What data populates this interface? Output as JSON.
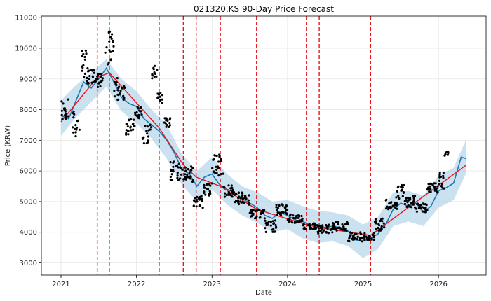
{
  "chart_data": {
    "type": "line",
    "title": "021320.KS 90-Day Price Forecast",
    "xlabel": "Date",
    "ylabel": "Price (KRW)",
    "xlim": [
      2020.74,
      2026.63
    ],
    "ylim": [
      2600,
      11050
    ],
    "x_ticks": [
      2021,
      2022,
      2023,
      2024,
      2025,
      2026
    ],
    "x_tick_labels": [
      "2021",
      "2022",
      "2023",
      "2024",
      "2025",
      "2026"
    ],
    "y_ticks": [
      3000,
      4000,
      5000,
      6000,
      7000,
      8000,
      9000,
      10000,
      11000
    ],
    "y_tick_labels": [
      "3000",
      "4000",
      "5000",
      "6000",
      "7000",
      "8000",
      "9000",
      "10000",
      "11000"
    ],
    "grid": true,
    "colors": {
      "forecast": "#1f77b4",
      "band": "#a6cde6",
      "trend": "#e8141c",
      "changepoint": "#e8141c",
      "observed": "#000000"
    },
    "changepoints": [
      2021.48,
      2021.64,
      2022.3,
      2022.62,
      2022.79,
      2023.11,
      2023.59,
      2024.25,
      2024.42,
      2025.1
    ],
    "trend": {
      "x": [
        2021.0,
        2021.48,
        2021.64,
        2022.3,
        2022.62,
        2022.79,
        2023.11,
        2023.59,
        2024.25,
        2024.42,
        2025.1,
        2026.37
      ],
      "y": [
        7600,
        9050,
        9200,
        7400,
        6200,
        5800,
        5500,
        4750,
        4250,
        4150,
        3900,
        6200
      ]
    },
    "forecast": {
      "x": [
        2021.0,
        2021.1,
        2021.2,
        2021.3,
        2021.4,
        2021.5,
        2021.6,
        2021.7,
        2021.8,
        2021.9,
        2022.0,
        2022.1,
        2022.2,
        2022.3,
        2022.4,
        2022.5,
        2022.6,
        2022.7,
        2022.8,
        2022.9,
        2023.0,
        2023.1,
        2023.2,
        2023.3,
        2023.4,
        2023.5,
        2023.6,
        2023.7,
        2023.8,
        2023.9,
        2024.0,
        2024.1,
        2024.2,
        2024.3,
        2024.4,
        2024.5,
        2024.6,
        2024.7,
        2024.8,
        2024.9,
        2025.0,
        2025.1,
        2025.2,
        2025.3,
        2025.4,
        2025.5,
        2025.6,
        2025.7,
        2025.8,
        2025.9,
        2026.0,
        2026.1,
        2026.2,
        2026.3,
        2026.37
      ],
      "y": [
        7800,
        7700,
        8300,
        8900,
        8700,
        9000,
        9350,
        8900,
        8400,
        8200,
        8100,
        7700,
        7500,
        7300,
        7000,
        6600,
        6050,
        5900,
        5500,
        5800,
        5900,
        5550,
        5400,
        5300,
        5100,
        4950,
        4800,
        4550,
        4450,
        4650,
        4550,
        4400,
        4350,
        4250,
        4250,
        4150,
        4200,
        4150,
        4050,
        3750,
        3700,
        3800,
        3950,
        4250,
        4750,
        4950,
        4850,
        4950,
        4650,
        4850,
        5350,
        5450,
        5600,
        6450,
        6400
      ]
    },
    "band": {
      "x": [
        2021.0,
        2021.2,
        2021.4,
        2021.6,
        2021.8,
        2022.0,
        2022.2,
        2022.4,
        2022.6,
        2022.8,
        2023.0,
        2023.2,
        2023.4,
        2023.6,
        2023.8,
        2024.0,
        2024.2,
        2024.4,
        2024.6,
        2024.8,
        2025.0,
        2025.2,
        2025.4,
        2025.6,
        2025.8,
        2026.0,
        2026.2,
        2026.37
      ],
      "upper": [
        8300,
        8800,
        9200,
        9650,
        9000,
        8600,
        8000,
        7500,
        6550,
        6000,
        6450,
        5900,
        5500,
        5300,
        5000,
        5050,
        4850,
        4700,
        4650,
        4550,
        4250,
        4500,
        5300,
        5350,
        5200,
        5850,
        6100,
        7050
      ],
      "lower": [
        7150,
        7750,
        8250,
        8750,
        7950,
        7550,
        7050,
        6400,
        5550,
        5000,
        5400,
        4900,
        4550,
        4300,
        4000,
        4100,
        3800,
        3650,
        3700,
        3550,
        3150,
        3450,
        4200,
        4350,
        4200,
        4800,
        5050,
        5950
      ]
    },
    "observed_clusters": [
      {
        "x0": 2021.0,
        "x1": 2021.1,
        "y": 8000,
        "spread": 350
      },
      {
        "x0": 2021.15,
        "x1": 2021.25,
        "y": 7500,
        "spread": 450
      },
      {
        "x0": 2021.26,
        "x1": 2021.34,
        "y": 9500,
        "spread": 450
      },
      {
        "x0": 2021.34,
        "x1": 2021.48,
        "y": 9100,
        "spread": 250
      },
      {
        "x0": 2021.48,
        "x1": 2021.58,
        "y": 8950,
        "spread": 250
      },
      {
        "x0": 2021.58,
        "x1": 2021.7,
        "y": 10000,
        "spread": 550
      },
      {
        "x0": 2021.7,
        "x1": 2021.85,
        "y": 8700,
        "spread": 400
      },
      {
        "x0": 2021.85,
        "x1": 2021.98,
        "y": 7400,
        "spread": 300
      },
      {
        "x0": 2021.98,
        "x1": 2022.08,
        "y": 7900,
        "spread": 200
      },
      {
        "x0": 2022.08,
        "x1": 2022.2,
        "y": 7200,
        "spread": 300
      },
      {
        "x0": 2022.2,
        "x1": 2022.28,
        "y": 9200,
        "spread": 250
      },
      {
        "x0": 2022.28,
        "x1": 2022.36,
        "y": 8400,
        "spread": 200
      },
      {
        "x0": 2022.36,
        "x1": 2022.45,
        "y": 7600,
        "spread": 200
      },
      {
        "x0": 2022.45,
        "x1": 2022.6,
        "y": 6000,
        "spread": 300
      },
      {
        "x0": 2022.6,
        "x1": 2022.75,
        "y": 5900,
        "spread": 250
      },
      {
        "x0": 2022.75,
        "x1": 2022.88,
        "y": 5000,
        "spread": 200
      },
      {
        "x0": 2022.88,
        "x1": 2023.0,
        "y": 5400,
        "spread": 200
      },
      {
        "x0": 2023.0,
        "x1": 2023.15,
        "y": 6200,
        "spread": 350
      },
      {
        "x0": 2023.15,
        "x1": 2023.3,
        "y": 5350,
        "spread": 200
      },
      {
        "x0": 2023.3,
        "x1": 2023.5,
        "y": 5100,
        "spread": 200
      },
      {
        "x0": 2023.5,
        "x1": 2023.7,
        "y": 4600,
        "spread": 150
      },
      {
        "x0": 2023.7,
        "x1": 2023.85,
        "y": 4200,
        "spread": 200
      },
      {
        "x0": 2023.85,
        "x1": 2024.0,
        "y": 4750,
        "spread": 200
      },
      {
        "x0": 2024.0,
        "x1": 2024.2,
        "y": 4450,
        "spread": 150
      },
      {
        "x0": 2024.2,
        "x1": 2024.4,
        "y": 4200,
        "spread": 100
      },
      {
        "x0": 2024.4,
        "x1": 2024.6,
        "y": 4100,
        "spread": 150
      },
      {
        "x0": 2024.6,
        "x1": 2024.8,
        "y": 4200,
        "spread": 150
      },
      {
        "x0": 2024.8,
        "x1": 2025.0,
        "y": 3850,
        "spread": 150
      },
      {
        "x0": 2025.0,
        "x1": 2025.15,
        "y": 3850,
        "spread": 150
      },
      {
        "x0": 2025.15,
        "x1": 2025.3,
        "y": 4250,
        "spread": 200
      },
      {
        "x0": 2025.3,
        "x1": 2025.45,
        "y": 4950,
        "spread": 200
      },
      {
        "x0": 2025.45,
        "x1": 2025.55,
        "y": 5350,
        "spread": 250
      },
      {
        "x0": 2025.55,
        "x1": 2025.7,
        "y": 5000,
        "spread": 200
      },
      {
        "x0": 2025.7,
        "x1": 2025.85,
        "y": 4800,
        "spread": 150
      },
      {
        "x0": 2025.85,
        "x1": 2026.0,
        "y": 5450,
        "spread": 150
      },
      {
        "x0": 2026.0,
        "x1": 2026.08,
        "y": 5700,
        "spread": 300
      },
      {
        "x0": 2026.08,
        "x1": 2026.13,
        "y": 6550,
        "spread": 80
      }
    ]
  }
}
